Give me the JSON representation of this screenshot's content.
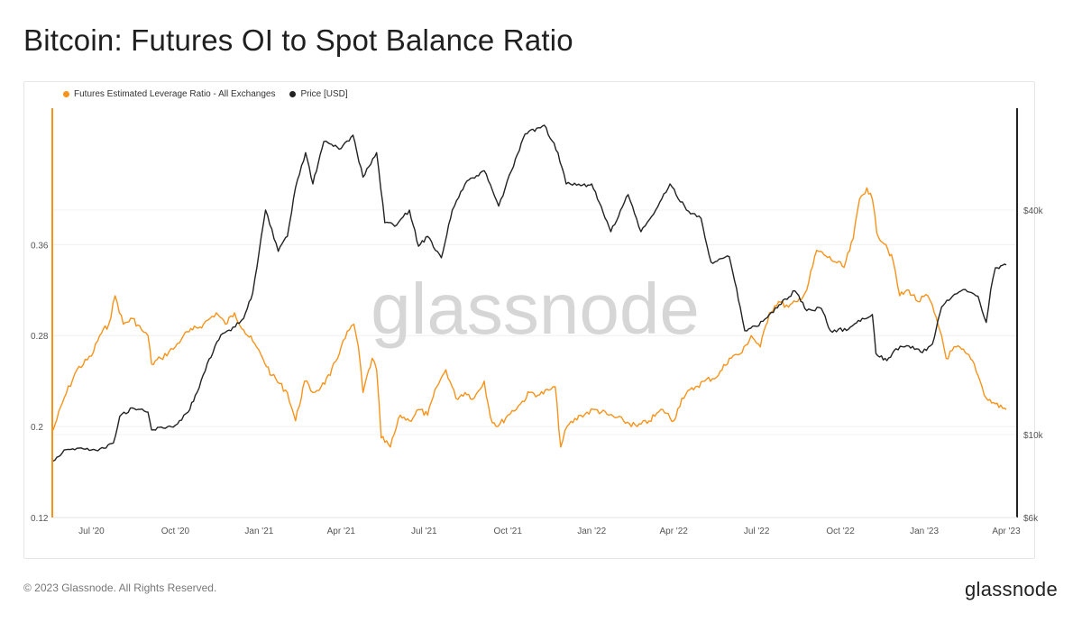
{
  "title": "Bitcoin: Futures OI to Spot Balance Ratio",
  "watermark": "glassnode",
  "footer": {
    "copyright": "© 2023 Glassnode. All Rights Reserved.",
    "logo": "glassnode"
  },
  "chart_data": {
    "type": "line",
    "legend_position": "top-left",
    "grid": true,
    "x_ticks": [
      "Jul '20",
      "Oct '20",
      "Jan '21",
      "Apr '21",
      "Jul '21",
      "Oct '21",
      "Jan '22",
      "Apr '22",
      "Jul '22",
      "Oct '22",
      "Jan '23",
      "Apr '23"
    ],
    "x_range": [
      "2020-05-20",
      "2023-04-01"
    ],
    "left_axis": {
      "ticks": [
        "0.12",
        "0.2",
        "0.28",
        "0.36"
      ],
      "tick_values": [
        0.12,
        0.2,
        0.28,
        0.36
      ],
      "range": [
        0.12,
        0.48
      ],
      "color": "#f7931a"
    },
    "right_axis": {
      "scale": "log",
      "ticks": [
        "$6k",
        "$10k",
        "$40k"
      ],
      "tick_values": [
        6000,
        10000,
        40000
      ],
      "range": [
        6000,
        75000
      ],
      "color": "#222222"
    },
    "series": [
      {
        "name": "Futures Estimated Leverage Ratio - All Exchanges",
        "color": "#f7931a",
        "axis": "left",
        "points": [
          [
            "2020-05-20",
            0.197
          ],
          [
            "2020-06-01",
            0.225
          ],
          [
            "2020-06-15",
            0.25
          ],
          [
            "2020-07-01",
            0.262
          ],
          [
            "2020-07-10",
            0.28
          ],
          [
            "2020-07-20",
            0.29
          ],
          [
            "2020-07-27",
            0.315
          ],
          [
            "2020-08-05",
            0.29
          ],
          [
            "2020-08-15",
            0.295
          ],
          [
            "2020-08-25",
            0.285
          ],
          [
            "2020-09-01",
            0.28
          ],
          [
            "2020-09-05",
            0.255
          ],
          [
            "2020-09-15",
            0.26
          ],
          [
            "2020-10-01",
            0.27
          ],
          [
            "2020-10-10",
            0.28
          ],
          [
            "2020-10-20",
            0.285
          ],
          [
            "2020-11-01",
            0.29
          ],
          [
            "2020-11-15",
            0.3
          ],
          [
            "2020-11-25",
            0.29
          ],
          [
            "2020-12-05",
            0.3
          ],
          [
            "2020-12-15",
            0.285
          ],
          [
            "2020-12-25",
            0.275
          ],
          [
            "2021-01-05",
            0.26
          ],
          [
            "2021-01-15",
            0.245
          ],
          [
            "2021-02-01",
            0.23
          ],
          [
            "2021-02-10",
            0.205
          ],
          [
            "2021-02-20",
            0.24
          ],
          [
            "2021-03-01",
            0.23
          ],
          [
            "2021-03-10",
            0.235
          ],
          [
            "2021-03-20",
            0.245
          ],
          [
            "2021-04-01",
            0.27
          ],
          [
            "2021-04-10",
            0.285
          ],
          [
            "2021-04-15",
            0.29
          ],
          [
            "2021-04-20",
            0.27
          ],
          [
            "2021-04-25",
            0.23
          ],
          [
            "2021-05-05",
            0.26
          ],
          [
            "2021-05-10",
            0.25
          ],
          [
            "2021-05-15",
            0.19
          ],
          [
            "2021-05-25",
            0.182
          ],
          [
            "2021-06-05",
            0.21
          ],
          [
            "2021-06-15",
            0.205
          ],
          [
            "2021-06-25",
            0.215
          ],
          [
            "2021-07-05",
            0.21
          ],
          [
            "2021-07-15",
            0.235
          ],
          [
            "2021-07-25",
            0.25
          ],
          [
            "2021-08-05",
            0.225
          ],
          [
            "2021-08-15",
            0.23
          ],
          [
            "2021-08-25",
            0.225
          ],
          [
            "2021-09-05",
            0.24
          ],
          [
            "2021-09-12",
            0.208
          ],
          [
            "2021-09-20",
            0.2
          ],
          [
            "2021-10-01",
            0.21
          ],
          [
            "2021-10-15",
            0.22
          ],
          [
            "2021-10-25",
            0.23
          ],
          [
            "2021-11-05",
            0.228
          ],
          [
            "2021-11-15",
            0.232
          ],
          [
            "2021-11-22",
            0.235
          ],
          [
            "2021-11-28",
            0.182
          ],
          [
            "2021-12-05",
            0.2
          ],
          [
            "2021-12-20",
            0.21
          ],
          [
            "2022-01-05",
            0.215
          ],
          [
            "2022-01-20",
            0.21
          ],
          [
            "2022-02-05",
            0.205
          ],
          [
            "2022-02-20",
            0.2
          ],
          [
            "2022-03-05",
            0.205
          ],
          [
            "2022-03-20",
            0.215
          ],
          [
            "2022-04-01",
            0.205
          ],
          [
            "2022-04-10",
            0.225
          ],
          [
            "2022-04-25",
            0.235
          ],
          [
            "2022-05-05",
            0.24
          ],
          [
            "2022-05-20",
            0.245
          ],
          [
            "2022-06-01",
            0.26
          ],
          [
            "2022-06-15",
            0.265
          ],
          [
            "2022-06-25",
            0.28
          ],
          [
            "2022-07-05",
            0.27
          ],
          [
            "2022-07-15",
            0.3
          ],
          [
            "2022-07-25",
            0.31
          ],
          [
            "2022-08-05",
            0.305
          ],
          [
            "2022-08-15",
            0.31
          ],
          [
            "2022-08-25",
            0.32
          ],
          [
            "2022-09-05",
            0.355
          ],
          [
            "2022-09-15",
            0.35
          ],
          [
            "2022-09-25",
            0.345
          ],
          [
            "2022-10-05",
            0.34
          ],
          [
            "2022-10-15",
            0.365
          ],
          [
            "2022-10-22",
            0.4
          ],
          [
            "2022-10-30",
            0.41
          ],
          [
            "2022-11-05",
            0.4
          ],
          [
            "2022-11-10",
            0.37
          ],
          [
            "2022-11-20",
            0.36
          ],
          [
            "2022-11-28",
            0.345
          ],
          [
            "2022-12-05",
            0.315
          ],
          [
            "2022-12-15",
            0.32
          ],
          [
            "2022-12-25",
            0.31
          ],
          [
            "2023-01-05",
            0.315
          ],
          [
            "2023-01-12",
            0.3
          ],
          [
            "2023-01-20",
            0.28
          ],
          [
            "2023-01-25",
            0.26
          ],
          [
            "2023-02-05",
            0.27
          ],
          [
            "2023-02-15",
            0.265
          ],
          [
            "2023-02-25",
            0.255
          ],
          [
            "2023-03-01",
            0.245
          ],
          [
            "2023-03-10",
            0.225
          ],
          [
            "2023-03-20",
            0.22
          ],
          [
            "2023-04-01",
            0.215
          ]
        ]
      },
      {
        "name": "Price [USD]",
        "color": "#222222",
        "axis": "right",
        "points": [
          [
            "2020-05-20",
            8500
          ],
          [
            "2020-06-01",
            9100
          ],
          [
            "2020-06-15",
            9200
          ],
          [
            "2020-07-01",
            9100
          ],
          [
            "2020-07-15",
            9200
          ],
          [
            "2020-07-25",
            9500
          ],
          [
            "2020-08-01",
            11200
          ],
          [
            "2020-08-15",
            11800
          ],
          [
            "2020-09-01",
            11500
          ],
          [
            "2020-09-05",
            10300
          ],
          [
            "2020-10-01",
            10600
          ],
          [
            "2020-10-15",
            11500
          ],
          [
            "2020-10-25",
            13000
          ],
          [
            "2020-11-05",
            15500
          ],
          [
            "2020-11-20",
            18500
          ],
          [
            "2020-12-01",
            19000
          ],
          [
            "2020-12-15",
            20500
          ],
          [
            "2020-12-25",
            24000
          ],
          [
            "2021-01-08",
            40000
          ],
          [
            "2021-01-22",
            31000
          ],
          [
            "2021-02-01",
            34000
          ],
          [
            "2021-02-10",
            46000
          ],
          [
            "2021-02-21",
            57000
          ],
          [
            "2021-03-01",
            47000
          ],
          [
            "2021-03-13",
            61000
          ],
          [
            "2021-04-01",
            58500
          ],
          [
            "2021-04-14",
            63500
          ],
          [
            "2021-04-25",
            49000
          ],
          [
            "2021-05-10",
            57000
          ],
          [
            "2021-05-19",
            37000
          ],
          [
            "2021-06-01",
            36500
          ],
          [
            "2021-06-15",
            40000
          ],
          [
            "2021-06-25",
            32000
          ],
          [
            "2021-07-05",
            34000
          ],
          [
            "2021-07-20",
            29800
          ],
          [
            "2021-08-01",
            40000
          ],
          [
            "2021-08-15",
            47000
          ],
          [
            "2021-09-05",
            51000
          ],
          [
            "2021-09-21",
            41000
          ],
          [
            "2021-10-05",
            51000
          ],
          [
            "2021-10-20",
            64000
          ],
          [
            "2021-11-10",
            67500
          ],
          [
            "2021-11-25",
            57000
          ],
          [
            "2021-12-04",
            47000
          ],
          [
            "2021-12-20",
            46500
          ],
          [
            "2022-01-01",
            47000
          ],
          [
            "2022-01-22",
            35000
          ],
          [
            "2022-02-10",
            44000
          ],
          [
            "2022-02-24",
            35000
          ],
          [
            "2022-03-10",
            39000
          ],
          [
            "2022-03-28",
            47000
          ],
          [
            "2022-04-15",
            40000
          ],
          [
            "2022-05-01",
            38000
          ],
          [
            "2022-05-12",
            29000
          ],
          [
            "2022-06-01",
            30000
          ],
          [
            "2022-06-13",
            22000
          ],
          [
            "2022-06-18",
            19000
          ],
          [
            "2022-07-01",
            19500
          ],
          [
            "2022-07-15",
            21000
          ],
          [
            "2022-08-12",
            24300
          ],
          [
            "2022-08-25",
            21500
          ],
          [
            "2022-09-10",
            21800
          ],
          [
            "2022-09-20",
            19000
          ],
          [
            "2022-10-10",
            19200
          ],
          [
            "2022-10-25",
            20500
          ],
          [
            "2022-11-05",
            21000
          ],
          [
            "2022-11-09",
            16500
          ],
          [
            "2022-11-21",
            15800
          ],
          [
            "2022-12-01",
            17000
          ],
          [
            "2022-12-15",
            17300
          ],
          [
            "2022-12-30",
            16600
          ],
          [
            "2023-01-10",
            17500
          ],
          [
            "2023-01-20",
            22000
          ],
          [
            "2023-02-01",
            23500
          ],
          [
            "2023-02-15",
            24500
          ],
          [
            "2023-03-01",
            23500
          ],
          [
            "2023-03-10",
            20000
          ],
          [
            "2023-03-15",
            24500
          ],
          [
            "2023-03-20",
            28000
          ],
          [
            "2023-04-01",
            28500
          ]
        ]
      }
    ]
  }
}
